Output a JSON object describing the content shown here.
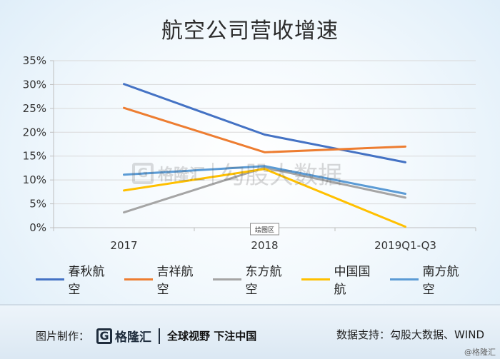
{
  "title": "航空公司营收增速",
  "chart_data": {
    "type": "line",
    "categories": [
      "2017",
      "2018",
      "2019Q1-Q3"
    ],
    "y_ticks": [
      "0%",
      "5%",
      "10%",
      "15%",
      "20%",
      "25%",
      "30%",
      "35%"
    ],
    "ylim": [
      0,
      35
    ],
    "grid": true,
    "legend_position": "bottom",
    "plot_area_label": "绘图区",
    "series": [
      {
        "name": "春秋航空",
        "color": "#4472c4",
        "values": [
          30.1,
          19.5,
          13.7
        ]
      },
      {
        "name": "吉祥航空",
        "color": "#ed7d31",
        "values": [
          25.1,
          15.8,
          17.0
        ]
      },
      {
        "name": "东方航空",
        "color": "#a5a5a5",
        "values": [
          3.2,
          12.6,
          6.3
        ]
      },
      {
        "name": "中国国航",
        "color": "#ffc000",
        "values": [
          7.8,
          12.3,
          0.2
        ]
      },
      {
        "name": "南方航空",
        "color": "#5b9bd5",
        "values": [
          11.1,
          12.9,
          7.1
        ]
      }
    ]
  },
  "watermark": {
    "logo_glyph": "G",
    "brand": "格隆汇",
    "text": "勾股大数据"
  },
  "footer": {
    "made_by_label": "图片制作：",
    "logo_glyph": "G",
    "logo_text": "格隆汇",
    "slogan": "全球视野 下注中国",
    "source": "数据支持：勾股大数据、WIND",
    "credit": "@格隆汇"
  }
}
